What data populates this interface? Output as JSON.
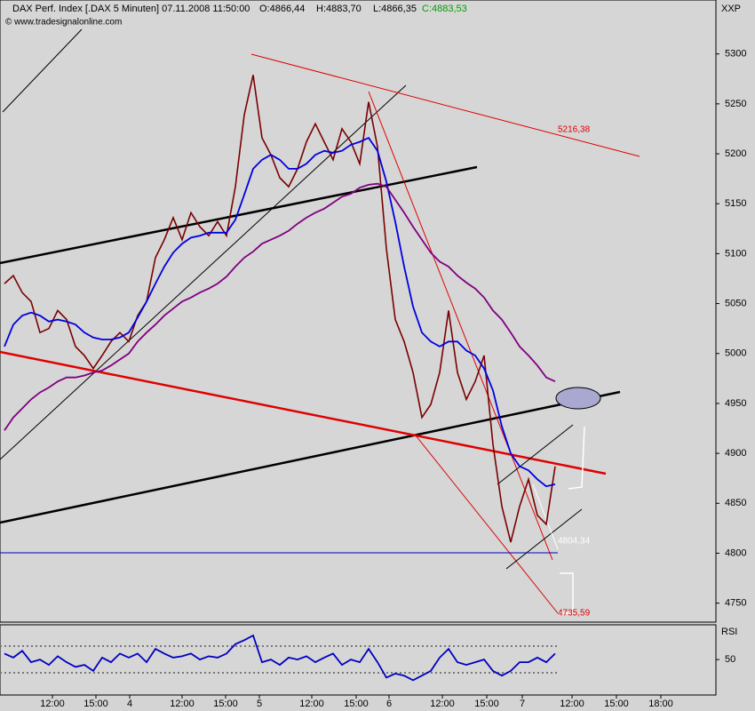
{
  "chart_data": [
    {
      "type": "line",
      "title": "DAX Perf. Index [.DAX  5 Minuten] 07.11.2008 11:50:00",
      "ohlc_labels": [
        "O:4866,44",
        "H:4883,70",
        "L:4866,35",
        "C:4883,53"
      ],
      "source": "© www.tradesignalonline.com",
      "symbol": "XXP",
      "annotations": [
        "5216,38",
        "4804,34",
        "4735,59"
      ],
      "xlim": [
        -0.5,
        80.1
      ],
      "xticks": [
        {
          "value": 5.4,
          "label": "12:00"
        },
        {
          "value": 10.3,
          "label": "15:00"
        },
        {
          "value": 14.1,
          "label": "4"
        },
        {
          "value": 20,
          "label": "12:00"
        },
        {
          "value": 24.9,
          "label": "15:00"
        },
        {
          "value": 28.7,
          "label": "5"
        },
        {
          "value": 34.6,
          "label": "12:00"
        },
        {
          "value": 39.6,
          "label": "15:00"
        },
        {
          "value": 43.3,
          "label": "6"
        },
        {
          "value": 49.3,
          "label": "12:00"
        },
        {
          "value": 54.3,
          "label": "15:00"
        },
        {
          "value": 58.3,
          "label": "7"
        },
        {
          "value": 63.9,
          "label": "12:00"
        },
        {
          "value": 68.9,
          "label": "15:00"
        },
        {
          "value": 73.9,
          "label": "18:00"
        }
      ],
      "ylim": [
        4731,
        5354
      ],
      "yticks": [
        5300,
        5250,
        5200,
        5150,
        5100,
        5050,
        5000,
        4950,
        4900,
        4850,
        4800,
        4750
      ],
      "x": [
        0,
        1,
        2,
        3,
        4,
        5,
        6,
        7,
        8,
        9,
        10,
        11,
        12,
        13,
        14,
        15,
        16,
        17,
        18,
        19,
        20,
        21,
        22,
        23,
        24,
        25,
        26,
        27,
        28,
        29,
        30,
        31,
        32,
        33,
        34,
        35,
        36,
        37,
        38,
        39,
        40,
        41,
        42,
        43,
        44,
        45,
        46,
        47,
        48,
        49,
        50,
        51,
        52,
        53,
        54,
        55,
        56,
        57,
        58,
        59,
        60,
        61,
        62
      ],
      "series": [
        {
          "color": "#7a0000",
          "values": [
            5070,
            5078,
            5061,
            5052,
            5021,
            5025,
            5043,
            5034,
            5007,
            4998,
            4985,
            4998,
            5012,
            5021,
            5012,
            5038,
            5052,
            5096,
            5114,
            5136,
            5114,
            5141,
            5127,
            5118,
            5132,
            5118,
            5167,
            5239,
            5279,
            5216,
            5199,
            5176,
            5167,
            5185,
            5212,
            5230,
            5212,
            5194,
            5225,
            5212,
            5190,
            5252,
            5207,
            5105,
            5034,
            5012,
            4981,
            4936,
            4949,
            4981,
            5043,
            4981,
            4954,
            4972,
            4998,
            4909,
            4847,
            4811,
            4847,
            4874,
            4838,
            4829,
            4887
          ]
        },
        {
          "color": "#0000e0",
          "values": [
            5007,
            5029,
            5038,
            5041,
            5038,
            5032,
            5034,
            5032,
            5029,
            5021,
            5016,
            5014,
            5014,
            5016,
            5021,
            5036,
            5052,
            5070,
            5087,
            5101,
            5110,
            5116,
            5118,
            5121,
            5121,
            5121,
            5134,
            5159,
            5185,
            5194,
            5199,
            5194,
            5185,
            5185,
            5190,
            5199,
            5203,
            5201,
            5203,
            5209,
            5212,
            5216,
            5203,
            5172,
            5132,
            5087,
            5047,
            5021,
            5012,
            5007,
            5012,
            5012,
            5003,
            4998,
            4985,
            4963,
            4927,
            4900,
            4887,
            4883,
            4874,
            4867,
            4869
          ]
        },
        {
          "color": "#800080",
          "values": [
            4923,
            4936,
            4945,
            4954,
            4961,
            4966,
            4972,
            4976,
            4976,
            4978,
            4981,
            4983,
            4988,
            4994,
            5000,
            5012,
            5021,
            5029,
            5038,
            5045,
            5052,
            5056,
            5061,
            5065,
            5070,
            5077,
            5087,
            5096,
            5102,
            5110,
            5114,
            5118,
            5123,
            5130,
            5136,
            5141,
            5145,
            5151,
            5157,
            5160,
            5166,
            5169,
            5170,
            5167,
            5154,
            5141,
            5127,
            5114,
            5101,
            5092,
            5087,
            5078,
            5071,
            5065,
            5056,
            5043,
            5034,
            5021,
            5007,
            4998,
            4988,
            4976,
            4972
          ]
        }
      ]
    },
    {
      "type": "line",
      "title": "RSI",
      "xlim": [
        -0.5,
        80.1
      ],
      "ylim": [
        -3,
        102
      ],
      "yticks": [
        50
      ],
      "x": [
        0,
        1,
        2,
        3,
        4,
        5,
        6,
        7,
        8,
        9,
        10,
        11,
        12,
        13,
        14,
        15,
        16,
        17,
        18,
        19,
        20,
        21,
        22,
        23,
        24,
        25,
        26,
        27,
        28,
        29,
        30,
        31,
        32,
        33,
        34,
        35,
        36,
        37,
        38,
        39,
        40,
        41,
        42,
        43,
        44,
        45,
        46,
        47,
        48,
        49,
        50,
        51,
        52,
        53,
        54,
        55,
        56,
        57,
        58,
        59,
        60,
        61,
        62
      ],
      "series": [
        {
          "color": "#0000c0",
          "values": [
            59,
            53,
            63,
            46,
            50,
            42,
            55,
            46,
            39,
            42,
            33,
            53,
            46,
            59,
            53,
            59,
            46,
            66,
            59,
            53,
            55,
            59,
            50,
            55,
            53,
            59,
            73,
            79,
            86,
            46,
            50,
            42,
            53,
            50,
            55,
            46,
            53,
            59,
            42,
            50,
            46,
            66,
            46,
            23,
            29,
            26,
            19,
            26,
            33,
            53,
            66,
            46,
            42,
            46,
            50,
            33,
            26,
            33,
            46,
            46,
            53,
            46,
            59
          ]
        }
      ]
    }
  ]
}
